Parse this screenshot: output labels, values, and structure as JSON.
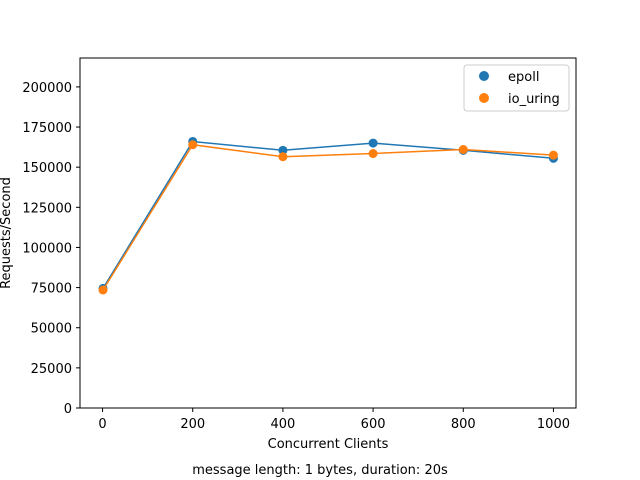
{
  "chart_data": {
    "type": "line",
    "title": "",
    "xlabel": "Concurrent Clients",
    "ylabel": "Requests/Second",
    "caption": "message length: 1 bytes, duration: 20s",
    "xlim": [
      -50,
      1050
    ],
    "ylim": [
      0,
      218000
    ],
    "xticks": [
      0,
      200,
      400,
      600,
      800,
      1000
    ],
    "yticks": [
      0,
      25000,
      50000,
      75000,
      100000,
      125000,
      150000,
      175000,
      200000
    ],
    "grid": false,
    "legend_position": "top-right",
    "x": [
      1,
      200,
      400,
      600,
      800,
      1000
    ],
    "series": [
      {
        "name": "epoll",
        "color": "#1f77b4",
        "marker": "circle",
        "values": [
          74500,
          166000,
          160500,
          165000,
          160500,
          155500
        ]
      },
      {
        "name": "io_uring",
        "color": "#ff7f0e",
        "marker": "circle",
        "values": [
          73500,
          164000,
          156500,
          158500,
          161000,
          157500
        ]
      }
    ]
  }
}
